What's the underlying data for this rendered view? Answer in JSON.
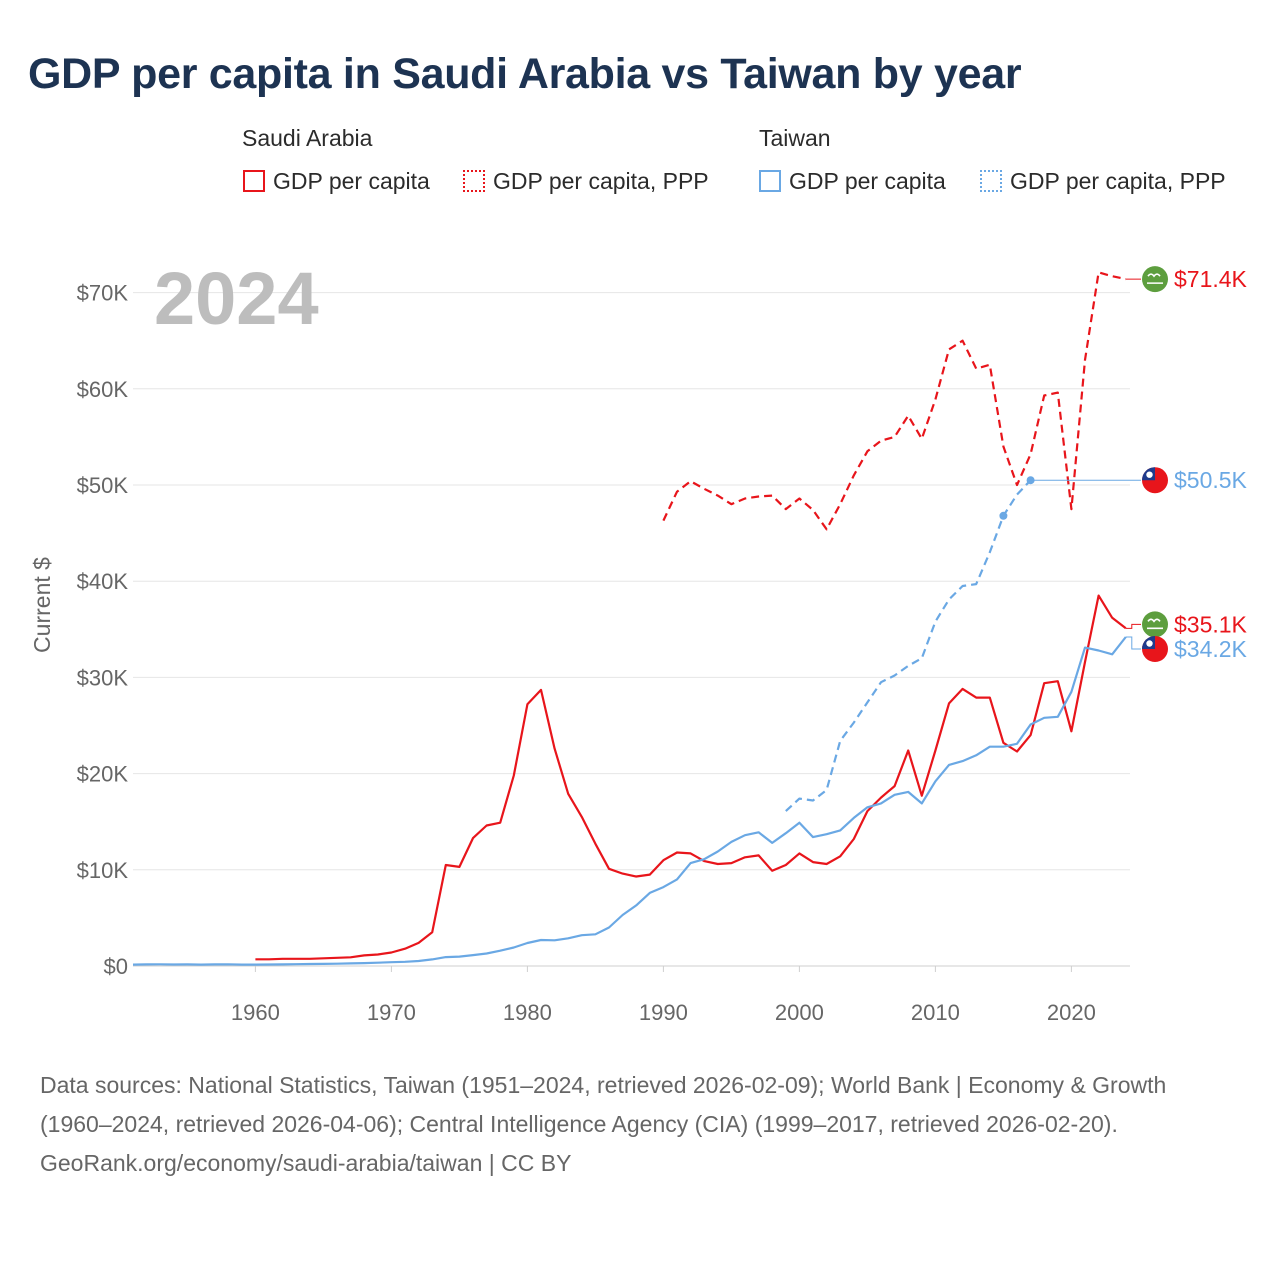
{
  "title": "GDP per capita in Saudi Arabia vs Taiwan by year",
  "legend": {
    "groups": [
      {
        "title": "Saudi Arabia",
        "items": [
          "GDP per capita",
          "GDP per capita, PPP"
        ]
      },
      {
        "title": "Taiwan",
        "items": [
          "GDP per capita",
          "GDP per capita, PPP"
        ]
      }
    ]
  },
  "colors": {
    "saudi": "#e8151b",
    "taiwan": "#6aa8e4",
    "grid": "#e6e6e6",
    "year_watermark": "#bdbdbd",
    "axis_text": "#666666"
  },
  "footer": {
    "sources": "Data sources: National Statistics, Taiwan (1951–2024, retrieved 2026-02-09); World Bank | Economy & Growth (1960–2024, retrieved 2026-04-06); Central Intelligence Agency (CIA) (1999–2017, retrieved 2026-02-20).",
    "credit": "GeoRank.org/economy/saudi-arabia/taiwan | CC BY"
  },
  "chart_data": {
    "type": "line",
    "title": "GDP per capita in Saudi Arabia vs Taiwan by year",
    "year_label": "2024",
    "ylabel": "Current $",
    "xlabel": "",
    "xlim": [
      1951,
      2024
    ],
    "ylim": [
      0,
      74000
    ],
    "x_ticks": [
      1960,
      1970,
      1980,
      1990,
      2000,
      2010,
      2020
    ],
    "y_ticks": [
      {
        "value": 0,
        "label": "$0"
      },
      {
        "value": 10000,
        "label": "$10K"
      },
      {
        "value": 20000,
        "label": "$20K"
      },
      {
        "value": 30000,
        "label": "$30K"
      },
      {
        "value": 40000,
        "label": "$40K"
      },
      {
        "value": 50000,
        "label": "$50K"
      },
      {
        "value": 60000,
        "label": "$60K"
      },
      {
        "value": 70000,
        "label": "$70K"
      }
    ],
    "series": [
      {
        "name": "Saudi Arabia GDP per capita, PPP",
        "country": "saudi",
        "style": "dashed",
        "end_label": "$71.4K",
        "end_value": 71400,
        "x": [
          1990,
          1991,
          1992,
          1993,
          1994,
          1995,
          1996,
          1997,
          1998,
          1999,
          2000,
          2001,
          2002,
          2003,
          2004,
          2005,
          2006,
          2007,
          2008,
          2009,
          2010,
          2011,
          2012,
          2013,
          2014,
          2015,
          2016,
          2017,
          2018,
          2019,
          2020,
          2021,
          2022,
          2023,
          2024
        ],
        "y": [
          46300,
          49300,
          50400,
          49600,
          48900,
          48000,
          48600,
          48800,
          48900,
          47500,
          48600,
          47400,
          45400,
          48000,
          51000,
          53500,
          54600,
          55000,
          57200,
          54800,
          58900,
          64100,
          65000,
          62100,
          62500,
          54000,
          50000,
          53200,
          59300,
          59600,
          47500,
          63000,
          72100,
          71700,
          71400
        ]
      },
      {
        "name": "Taiwan GDP per capita, PPP",
        "country": "taiwan",
        "style": "dashed",
        "end_label": "$50.5K",
        "end_value": 50500,
        "x": [
          1999,
          2000,
          2001,
          2002,
          2003,
          2004,
          2005,
          2006,
          2007,
          2008,
          2009,
          2010,
          2011,
          2012,
          2013,
          2014,
          2015,
          2016,
          2017
        ],
        "y": [
          16100,
          17400,
          17200,
          18300,
          23400,
          25300,
          27400,
          29500,
          30200,
          31200,
          32000,
          35800,
          38100,
          39500,
          39700,
          43000,
          46800,
          49000,
          50500
        ]
      },
      {
        "name": "Saudi Arabia GDP per capita",
        "country": "saudi",
        "style": "solid",
        "end_label": "$35.1K",
        "end_value": 35100,
        "x": [
          1960,
          1961,
          1962,
          1963,
          1964,
          1965,
          1966,
          1967,
          1968,
          1969,
          1970,
          1971,
          1972,
          1973,
          1974,
          1975,
          1976,
          1977,
          1978,
          1979,
          1980,
          1981,
          1982,
          1983,
          1984,
          1985,
          1986,
          1987,
          1988,
          1989,
          1990,
          1991,
          1992,
          1993,
          1994,
          1995,
          1996,
          1997,
          1998,
          1999,
          2000,
          2001,
          2002,
          2003,
          2004,
          2005,
          2006,
          2007,
          2008,
          2009,
          2010,
          2011,
          2012,
          2013,
          2014,
          2015,
          2016,
          2017,
          2018,
          2019,
          2020,
          2021,
          2022,
          2023,
          2024
        ],
        "y": [
          700,
          700,
          750,
          750,
          750,
          800,
          850,
          900,
          1100,
          1200,
          1400,
          1800,
          2400,
          3500,
          10500,
          10300,
          13300,
          14600,
          14900,
          19800,
          27200,
          28700,
          22600,
          17900,
          15500,
          12700,
          10100,
          9600,
          9300,
          9500,
          11000,
          11800,
          11700,
          10900,
          10600,
          10700,
          11300,
          11500,
          9900,
          10500,
          11700,
          10800,
          10600,
          11400,
          13200,
          16100,
          17500,
          18700,
          22400,
          17700,
          22400,
          27300,
          28800,
          27900,
          27900,
          23200,
          22300,
          24000,
          29400,
          29600,
          24400,
          31600,
          38500,
          36200,
          35100
        ]
      },
      {
        "name": "Taiwan GDP per capita",
        "country": "taiwan",
        "style": "solid",
        "end_label": "$34.2K",
        "end_value": 34200,
        "x": [
          1951,
          1952,
          1953,
          1954,
          1955,
          1956,
          1957,
          1958,
          1959,
          1960,
          1961,
          1962,
          1963,
          1964,
          1965,
          1966,
          1967,
          1968,
          1969,
          1970,
          1971,
          1972,
          1973,
          1974,
          1975,
          1976,
          1977,
          1978,
          1979,
          1980,
          1981,
          1982,
          1983,
          1984,
          1985,
          1986,
          1987,
          1988,
          1989,
          1990,
          1991,
          1992,
          1993,
          1994,
          1995,
          1996,
          1997,
          1998,
          1999,
          2000,
          2001,
          2002,
          2003,
          2004,
          2005,
          2006,
          2007,
          2008,
          2009,
          2010,
          2011,
          2012,
          2013,
          2014,
          2015,
          2016,
          2017,
          2018,
          2019,
          2020,
          2021,
          2022,
          2023,
          2024
        ],
        "y": [
          150,
          170,
          180,
          160,
          170,
          150,
          170,
          180,
          150,
          150,
          160,
          170,
          190,
          210,
          220,
          240,
          270,
          300,
          340,
          390,
          440,
          520,
          690,
          920,
          980,
          1130,
          1300,
          1590,
          1920,
          2390,
          2700,
          2670,
          2880,
          3200,
          3300,
          4000,
          5300,
          6300,
          7600,
          8200,
          9000,
          10700,
          11100,
          11900,
          12900,
          13600,
          13900,
          12800,
          13800,
          14900,
          13400,
          13700,
          14100,
          15400,
          16500,
          16900,
          17800,
          18100,
          16900,
          19200,
          20900,
          21300,
          21900,
          22800,
          22800,
          23100,
          25100,
          25800,
          25900,
          28500,
          33100,
          32800,
          32400,
          34200
        ]
      }
    ],
    "markers": [
      {
        "series": "Taiwan GDP per capita, PPP",
        "x": 2015,
        "y": 46800
      },
      {
        "series": "Taiwan GDP per capita, PPP",
        "x": 2017,
        "y": 50500
      }
    ]
  }
}
